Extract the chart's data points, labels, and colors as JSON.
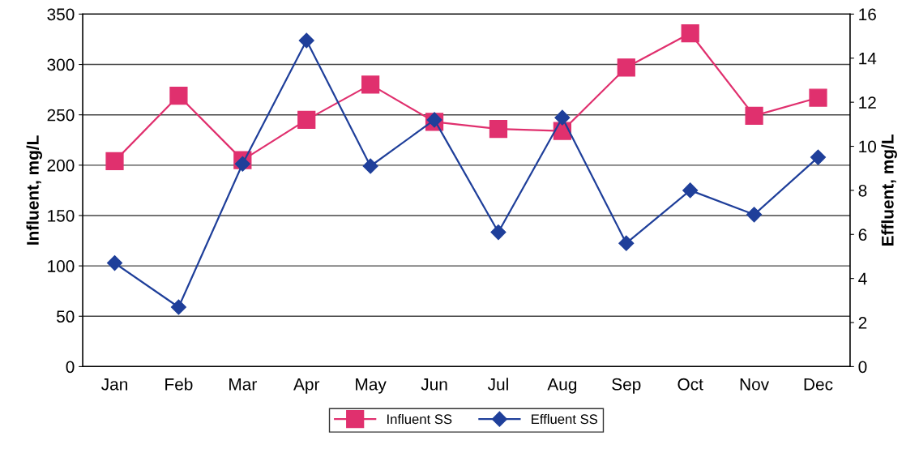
{
  "chart_data": {
    "type": "line",
    "ylabel": "Influent, mg/L",
    "y2label": "Effluent, mg/L",
    "categories": [
      "Jan",
      "Feb",
      "Mar",
      "Apr",
      "May",
      "Jun",
      "Jul",
      "Aug",
      "Sep",
      "Oct",
      "Nov",
      "Dec"
    ],
    "series": [
      {
        "name": "Influent SS",
        "color": "#e0306e",
        "marker": "square",
        "values": [
          204,
          269,
          205,
          245,
          280,
          243,
          236,
          234,
          297,
          331,
          249,
          267
        ]
      },
      {
        "name": "Effluent SS",
        "color": "#1f3f9a",
        "marker": "diamond",
        "axis": "y2",
        "values": [
          4.7,
          2.7,
          9.2,
          14.8,
          9.1,
          11.2,
          6.1,
          11.3,
          5.6,
          8.0,
          6.9,
          9.5
        ]
      }
    ],
    "ylim": [
      0,
      350
    ],
    "yticks": [
      0,
      50,
      100,
      150,
      200,
      250,
      300,
      350
    ],
    "y2lim": [
      0,
      16
    ],
    "y2ticks": [
      0,
      2,
      4,
      6,
      8,
      10,
      12,
      14,
      16
    ],
    "grid": "y",
    "legend": "bottom"
  }
}
